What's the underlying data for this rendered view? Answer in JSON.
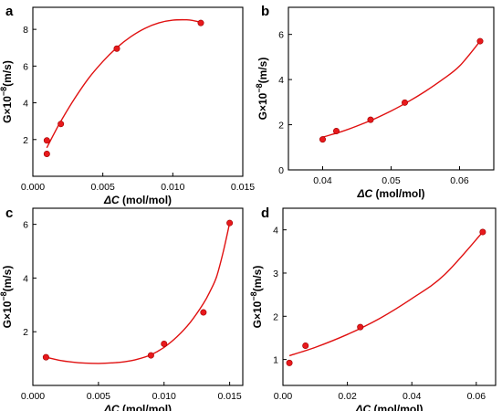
{
  "figure": {
    "background": "#ffffff"
  },
  "chart_data": [
    {
      "panel": "a",
      "type": "scatter",
      "xlabel_symbol": "ΔC",
      "xlabel_unit": "(mol/mol)",
      "ylabel_prefix": "G×10",
      "ylabel_exp": "−8",
      "ylabel_unit": "(m/s)",
      "xlim": [
        0,
        0.015
      ],
      "ylim": [
        0,
        9.2
      ],
      "xticks": [
        0.0,
        0.005,
        0.01,
        0.015
      ],
      "xtick_labels": [
        "0.000",
        "0.005",
        "0.010",
        "0.015"
      ],
      "yticks": [
        2,
        4,
        6,
        8
      ],
      "ytick_labels": [
        "2",
        "4",
        "6",
        "8"
      ],
      "points": [
        {
          "x": 0.001,
          "y": 1.95
        },
        {
          "x": 0.001,
          "y": 1.22
        },
        {
          "x": 0.002,
          "y": 2.85
        },
        {
          "x": 0.006,
          "y": 6.95
        },
        {
          "x": 0.012,
          "y": 8.35
        }
      ],
      "curve": [
        {
          "x": 0.001,
          "y": 1.55
        },
        {
          "x": 0.0015,
          "y": 2.3
        },
        {
          "x": 0.002,
          "y": 3.0
        },
        {
          "x": 0.003,
          "y": 4.25
        },
        {
          "x": 0.004,
          "y": 5.35
        },
        {
          "x": 0.005,
          "y": 6.25
        },
        {
          "x": 0.006,
          "y": 7.0
        },
        {
          "x": 0.007,
          "y": 7.6
        },
        {
          "x": 0.008,
          "y": 8.05
        },
        {
          "x": 0.009,
          "y": 8.35
        },
        {
          "x": 0.01,
          "y": 8.5
        },
        {
          "x": 0.011,
          "y": 8.52
        },
        {
          "x": 0.0115,
          "y": 8.47
        },
        {
          "x": 0.012,
          "y": 8.38
        }
      ],
      "grid": false,
      "marker_color": "#e8191c",
      "line_color": "#e01010"
    },
    {
      "panel": "b",
      "type": "scatter",
      "xlabel_symbol": "ΔC",
      "xlabel_unit": "(mol/mol)",
      "ylabel_prefix": "G×10",
      "ylabel_exp": "−8",
      "ylabel_unit": "(m/s)",
      "xlim": [
        0.035,
        0.065
      ],
      "ylim": [
        0,
        7.2
      ],
      "xticks": [
        0.04,
        0.05,
        0.06
      ],
      "xtick_labels": [
        "0.04",
        "0.05",
        "0.06"
      ],
      "yticks": [
        0,
        2,
        4,
        6
      ],
      "ytick_labels": [
        "0",
        "2",
        "4",
        "6"
      ],
      "points": [
        {
          "x": 0.04,
          "y": 1.35
        },
        {
          "x": 0.042,
          "y": 1.72
        },
        {
          "x": 0.047,
          "y": 2.22
        },
        {
          "x": 0.052,
          "y": 2.98
        },
        {
          "x": 0.063,
          "y": 5.7
        }
      ],
      "curve": [
        {
          "x": 0.04,
          "y": 1.45
        },
        {
          "x": 0.0425,
          "y": 1.67
        },
        {
          "x": 0.045,
          "y": 1.94
        },
        {
          "x": 0.0475,
          "y": 2.25
        },
        {
          "x": 0.05,
          "y": 2.61
        },
        {
          "x": 0.0525,
          "y": 3.02
        },
        {
          "x": 0.055,
          "y": 3.48
        },
        {
          "x": 0.0575,
          "y": 4.0
        },
        {
          "x": 0.06,
          "y": 4.6
        },
        {
          "x": 0.063,
          "y": 5.7
        }
      ],
      "grid": false,
      "marker_color": "#e8191c",
      "line_color": "#e01010"
    },
    {
      "panel": "c",
      "type": "scatter",
      "xlabel_symbol": "ΔC",
      "xlabel_unit": "(mol/mol)",
      "ylabel_prefix": "G×10",
      "ylabel_exp": "−8",
      "ylabel_unit": "(m/s)",
      "xlim": [
        0,
        0.016
      ],
      "ylim": [
        0,
        6.6
      ],
      "xticks": [
        0.0,
        0.005,
        0.01,
        0.015
      ],
      "xtick_labels": [
        "0.000",
        "0.005",
        "0.010",
        "0.015"
      ],
      "yticks": [
        2,
        4,
        6
      ],
      "ytick_labels": [
        "2",
        "4",
        "6"
      ],
      "points": [
        {
          "x": 0.001,
          "y": 1.05
        },
        {
          "x": 0.009,
          "y": 1.12
        },
        {
          "x": 0.01,
          "y": 1.55
        },
        {
          "x": 0.013,
          "y": 2.72
        },
        {
          "x": 0.015,
          "y": 6.05
        }
      ],
      "curve": [
        {
          "x": 0.001,
          "y": 1.05
        },
        {
          "x": 0.002,
          "y": 0.94
        },
        {
          "x": 0.003,
          "y": 0.87
        },
        {
          "x": 0.004,
          "y": 0.83
        },
        {
          "x": 0.005,
          "y": 0.82
        },
        {
          "x": 0.006,
          "y": 0.84
        },
        {
          "x": 0.007,
          "y": 0.88
        },
        {
          "x": 0.008,
          "y": 0.98
        },
        {
          "x": 0.009,
          "y": 1.14
        },
        {
          "x": 0.01,
          "y": 1.42
        },
        {
          "x": 0.011,
          "y": 1.82
        },
        {
          "x": 0.012,
          "y": 2.35
        },
        {
          "x": 0.013,
          "y": 3.05
        },
        {
          "x": 0.0135,
          "y": 3.5
        },
        {
          "x": 0.014,
          "y": 4.05
        },
        {
          "x": 0.0145,
          "y": 4.95
        },
        {
          "x": 0.015,
          "y": 6.05
        }
      ],
      "grid": false,
      "marker_color": "#e8191c",
      "line_color": "#e01010"
    },
    {
      "panel": "d",
      "type": "scatter",
      "xlabel_symbol": "ΔC",
      "xlabel_unit": "(mol/mol)",
      "ylabel_prefix": "G×10",
      "ylabel_exp": "−8",
      "ylabel_unit": "(m/s)",
      "xlim": [
        0,
        0.066
      ],
      "ylim": [
        0.4,
        4.5
      ],
      "xticks": [
        0.0,
        0.02,
        0.04,
        0.06
      ],
      "xtick_labels": [
        "0.00",
        "0.02",
        "0.04",
        "0.06"
      ],
      "yticks": [
        1,
        2,
        3,
        4
      ],
      "ytick_labels": [
        "1",
        "2",
        "3",
        "4"
      ],
      "points": [
        {
          "x": 0.002,
          "y": 0.92
        },
        {
          "x": 0.007,
          "y": 1.32
        },
        {
          "x": 0.024,
          "y": 1.75
        },
        {
          "x": 0.062,
          "y": 3.95
        }
      ],
      "curve": [
        {
          "x": 0.002,
          "y": 1.09
        },
        {
          "x": 0.01,
          "y": 1.28
        },
        {
          "x": 0.02,
          "y": 1.58
        },
        {
          "x": 0.03,
          "y": 1.95
        },
        {
          "x": 0.04,
          "y": 2.41
        },
        {
          "x": 0.05,
          "y": 2.95
        },
        {
          "x": 0.062,
          "y": 3.95
        }
      ],
      "grid": false,
      "marker_color": "#e8191c",
      "line_color": "#e01010"
    }
  ]
}
